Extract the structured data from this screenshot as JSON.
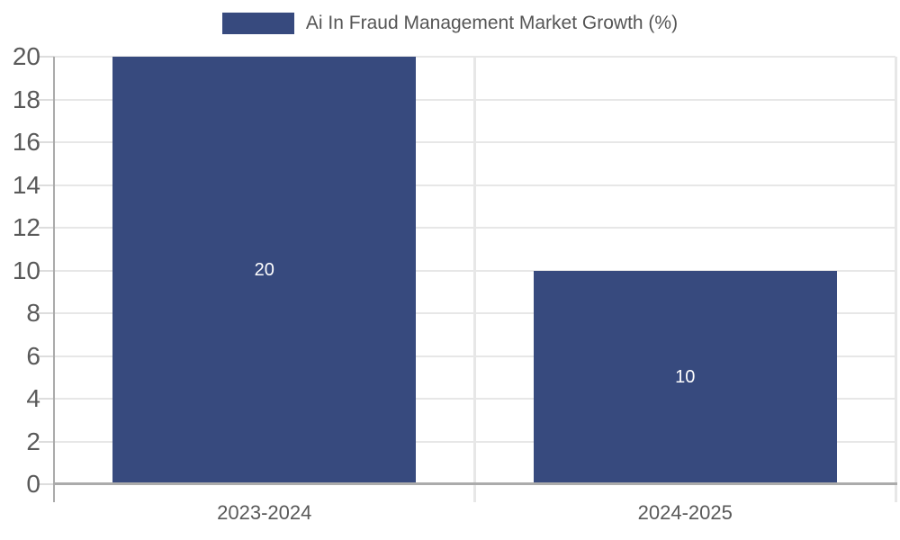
{
  "chart_data": {
    "type": "bar",
    "title": "Ai In Fraud Management Market Growth (%)",
    "categories": [
      "2023-2024",
      "2024-2025"
    ],
    "values": [
      20,
      10
    ],
    "bar_labels": [
      "20",
      "10"
    ],
    "ylim": [
      0,
      20
    ],
    "ytick_step": 2,
    "yticks": [
      0,
      2,
      4,
      6,
      8,
      10,
      12,
      14,
      16,
      18,
      20
    ],
    "grid": "on",
    "legend_position": "top-center",
    "bar_width_fraction": 0.72,
    "colors": {
      "bar": "#374a7e",
      "legend_swatch": "#374a7e",
      "legend_text": "#555555",
      "tick_label": "#595959",
      "gridline": "#e7e7e7",
      "axis": "#ababab",
      "bar_label_text": "#ffffff",
      "background": "#ffffff"
    }
  }
}
